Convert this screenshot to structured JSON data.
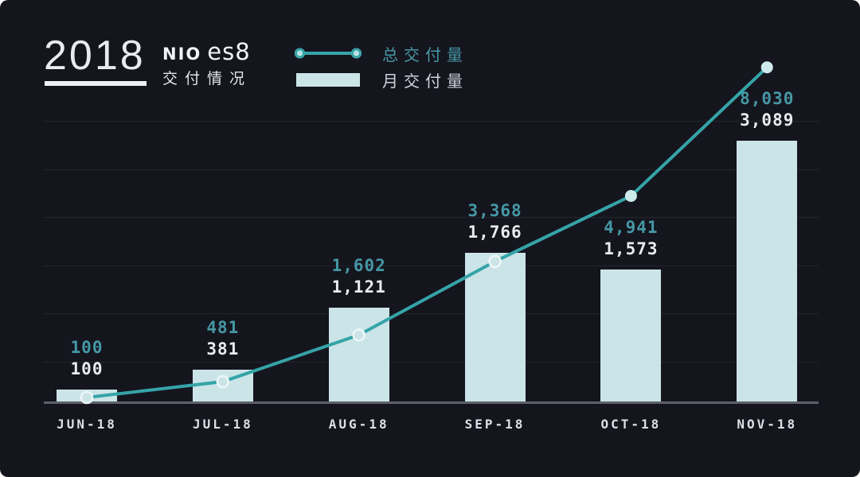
{
  "header": {
    "year": "2018",
    "brand": "NIO",
    "model": "es8",
    "subtitle": "交付情况"
  },
  "legend": [
    {
      "label": "总交付量",
      "swatch": "line-with-dots"
    },
    {
      "label": "月交付量",
      "swatch": "bar"
    }
  ],
  "colors": {
    "background": "#15151e",
    "bar_fill": "#cbe4e7",
    "line": "#35a4a8",
    "teal_text": "#4598a5",
    "white_text": "#e9ebf0",
    "axis": "#5f606b",
    "gridline": "rgba(255,255,255,0.07)"
  },
  "chart_data": {
    "type": "bar",
    "title": "NIO es8 交付情况 2018",
    "categories": [
      "JUN-18",
      "JUL-18",
      "AUG-18",
      "SEP-18",
      "OCT-18",
      "NOV-18"
    ],
    "series": [
      {
        "name": "总交付量",
        "type": "line",
        "values": [
          100,
          481,
          1602,
          3368,
          4941,
          8030
        ],
        "labels": [
          "100",
          "481",
          "1,602",
          "3,368",
          "4,941",
          "8,030"
        ],
        "point_filled": [
          false,
          false,
          false,
          false,
          true,
          true
        ]
      },
      {
        "name": "月交付量",
        "type": "bar",
        "values": [
          100,
          381,
          1121,
          1766,
          1573,
          3089
        ],
        "labels": [
          "100",
          "381",
          "1,121",
          "1,766",
          "1,573",
          "3,089"
        ]
      }
    ],
    "xlabel": "",
    "ylabel": "",
    "grid": true,
    "legend_position": "top"
  }
}
